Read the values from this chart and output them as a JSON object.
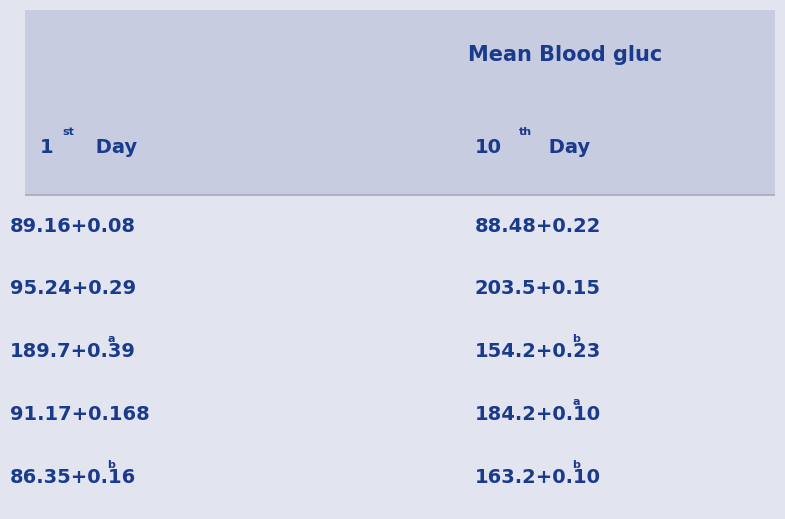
{
  "title_text": "Mean Blood gluc",
  "header_bg": "#c8cce0",
  "data_bg": "#e2e4f0",
  "col1_data": [
    "89.16+0.08",
    "95.24+0.29",
    "189.7+0.39",
    "91.17+0.168",
    "86.35+0.16"
  ],
  "col1_superscript": [
    "",
    "",
    "a",
    "",
    "b"
  ],
  "col2_data": [
    "88.48+0.22",
    "203.5+0.15",
    "154.2+0.23",
    "184.2+0.10",
    "163.2+0.10"
  ],
  "col2_superscript": [
    "",
    "",
    "b",
    "a",
    "b"
  ],
  "text_color": "#1a3a8c",
  "fig_width": 7.5,
  "fig_height": 4.99
}
